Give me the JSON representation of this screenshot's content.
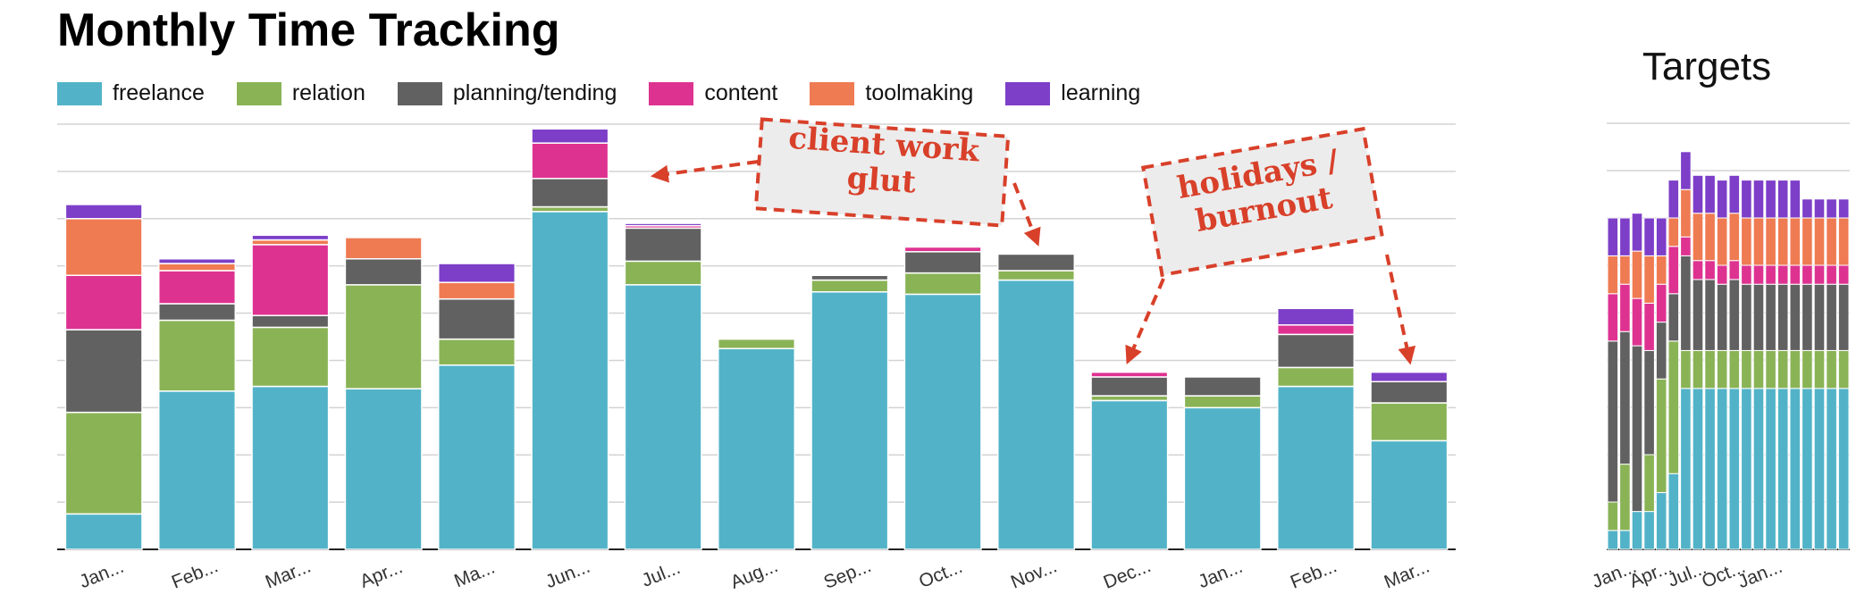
{
  "title": "Monthly Time Tracking",
  "colors": {
    "freelance": "#52b3c8",
    "relation": "#8ab356",
    "planning/tending": "#616161",
    "content": "#de3291",
    "toolmaking": "#ef7b52",
    "learning": "#7d3ec8",
    "gridline": "#d3d3d3",
    "annotation": "#d8402a",
    "callout_bg": "#ececec"
  },
  "legend": [
    "freelance",
    "relation",
    "planning/tending",
    "content",
    "toolmaking",
    "learning"
  ],
  "chart_data": [
    {
      "type": "bar",
      "stacked": true,
      "title": "",
      "xlabel": "",
      "ylabel": "",
      "ylim": [
        0,
        9
      ],
      "grid": true,
      "legend_position": "top-left",
      "categories": [
        "Jan...",
        "Feb...",
        "Mar...",
        "Apr...",
        "Ma...",
        "Jun...",
        "Jul...",
        "Aug...",
        "Sep...",
        "Oct...",
        "Nov...",
        "Dec...",
        "Jan...",
        "Feb...",
        "Mar..."
      ],
      "series": [
        {
          "name": "freelance",
          "values": [
            0.75,
            3.35,
            3.45,
            3.4,
            3.9,
            7.15,
            5.6,
            4.25,
            5.45,
            5.4,
            5.7,
            3.15,
            3.0,
            3.45,
            2.3
          ]
        },
        {
          "name": "relation",
          "values": [
            2.15,
            1.5,
            1.25,
            2.2,
            0.55,
            0.1,
            0.5,
            0.2,
            0.25,
            0.45,
            0.2,
            0.1,
            0.25,
            0.4,
            0.8
          ]
        },
        {
          "name": "planning/tending",
          "values": [
            1.75,
            0.35,
            0.25,
            0.55,
            0.85,
            0.6,
            0.7,
            0.0,
            0.1,
            0.45,
            0.35,
            0.4,
            0.4,
            0.7,
            0.45
          ]
        },
        {
          "name": "content",
          "values": [
            1.15,
            0.7,
            1.5,
            0.0,
            0.0,
            0.75,
            0.05,
            0.0,
            0.0,
            0.1,
            0.0,
            0.1,
            0.0,
            0.2,
            0.0
          ]
        },
        {
          "name": "toolmaking",
          "values": [
            1.2,
            0.15,
            0.1,
            0.45,
            0.35,
            0.0,
            0.0,
            0.0,
            0.0,
            0.0,
            0.0,
            0.0,
            0.0,
            0.0,
            0.0
          ]
        },
        {
          "name": "learning",
          "values": [
            0.3,
            0.1,
            0.1,
            0.0,
            0.4,
            0.3,
            0.05,
            0.0,
            0.0,
            0.0,
            0.0,
            0.0,
            0.0,
            0.35,
            0.2
          ]
        }
      ],
      "annotations": [
        {
          "text": "client work glut",
          "lines": [
            "client work",
            "glut"
          ],
          "points_to": [
            "Jun...",
            "Nov..."
          ]
        },
        {
          "text": "holidays / burnout",
          "lines": [
            "holidays /",
            "burnout"
          ],
          "points_to": [
            "Dec...",
            "Mar..."
          ]
        }
      ]
    },
    {
      "type": "bar",
      "stacked": true,
      "title": "Targets",
      "xlabel": "",
      "ylabel": "",
      "ylim": [
        0,
        9
      ],
      "grid": true,
      "tick_labels": [
        "Jan...",
        "Apr...",
        "Jul...",
        "Oct...",
        "Jan..."
      ],
      "series": [
        {
          "name": "freelance",
          "values": [
            0.4,
            0.4,
            0.8,
            0.8,
            1.2,
            1.6,
            3.4,
            3.4,
            3.4,
            3.4,
            3.4,
            3.4,
            3.4,
            3.4,
            3.4,
            3.4,
            3.4,
            3.4,
            3.4,
            3.4
          ]
        },
        {
          "name": "relation",
          "values": [
            0.6,
            1.4,
            0.0,
            1.2,
            2.4,
            2.8,
            0.8,
            0.8,
            0.8,
            0.8,
            0.8,
            0.8,
            0.8,
            0.8,
            0.8,
            0.8,
            0.8,
            0.8,
            0.8,
            0.8
          ]
        },
        {
          "name": "planning/tending",
          "values": [
            3.4,
            2.8,
            3.5,
            2.2,
            1.2,
            1.0,
            2.0,
            1.5,
            1.5,
            1.4,
            1.5,
            1.4,
            1.4,
            1.4,
            1.4,
            1.4,
            1.4,
            1.4,
            1.4,
            1.4
          ]
        },
        {
          "name": "content",
          "values": [
            1.0,
            1.0,
            1.0,
            1.0,
            0.8,
            1.0,
            0.4,
            0.4,
            0.4,
            0.4,
            0.4,
            0.4,
            0.4,
            0.4,
            0.4,
            0.4,
            0.4,
            0.4,
            0.4,
            0.4
          ]
        },
        {
          "name": "toolmaking",
          "values": [
            0.8,
            0.6,
            1.0,
            1.0,
            0.6,
            0.6,
            1.0,
            1.0,
            1.0,
            1.0,
            1.0,
            1.0,
            1.0,
            1.0,
            1.0,
            1.0,
            1.0,
            1.0,
            1.0,
            1.0
          ]
        },
        {
          "name": "learning",
          "values": [
            0.8,
            0.8,
            0.8,
            0.8,
            0.8,
            0.8,
            0.8,
            0.8,
            0.8,
            0.8,
            0.8,
            0.8,
            0.8,
            0.8,
            0.8,
            0.8,
            0.4,
            0.4,
            0.4,
            0.4
          ]
        }
      ]
    }
  ]
}
